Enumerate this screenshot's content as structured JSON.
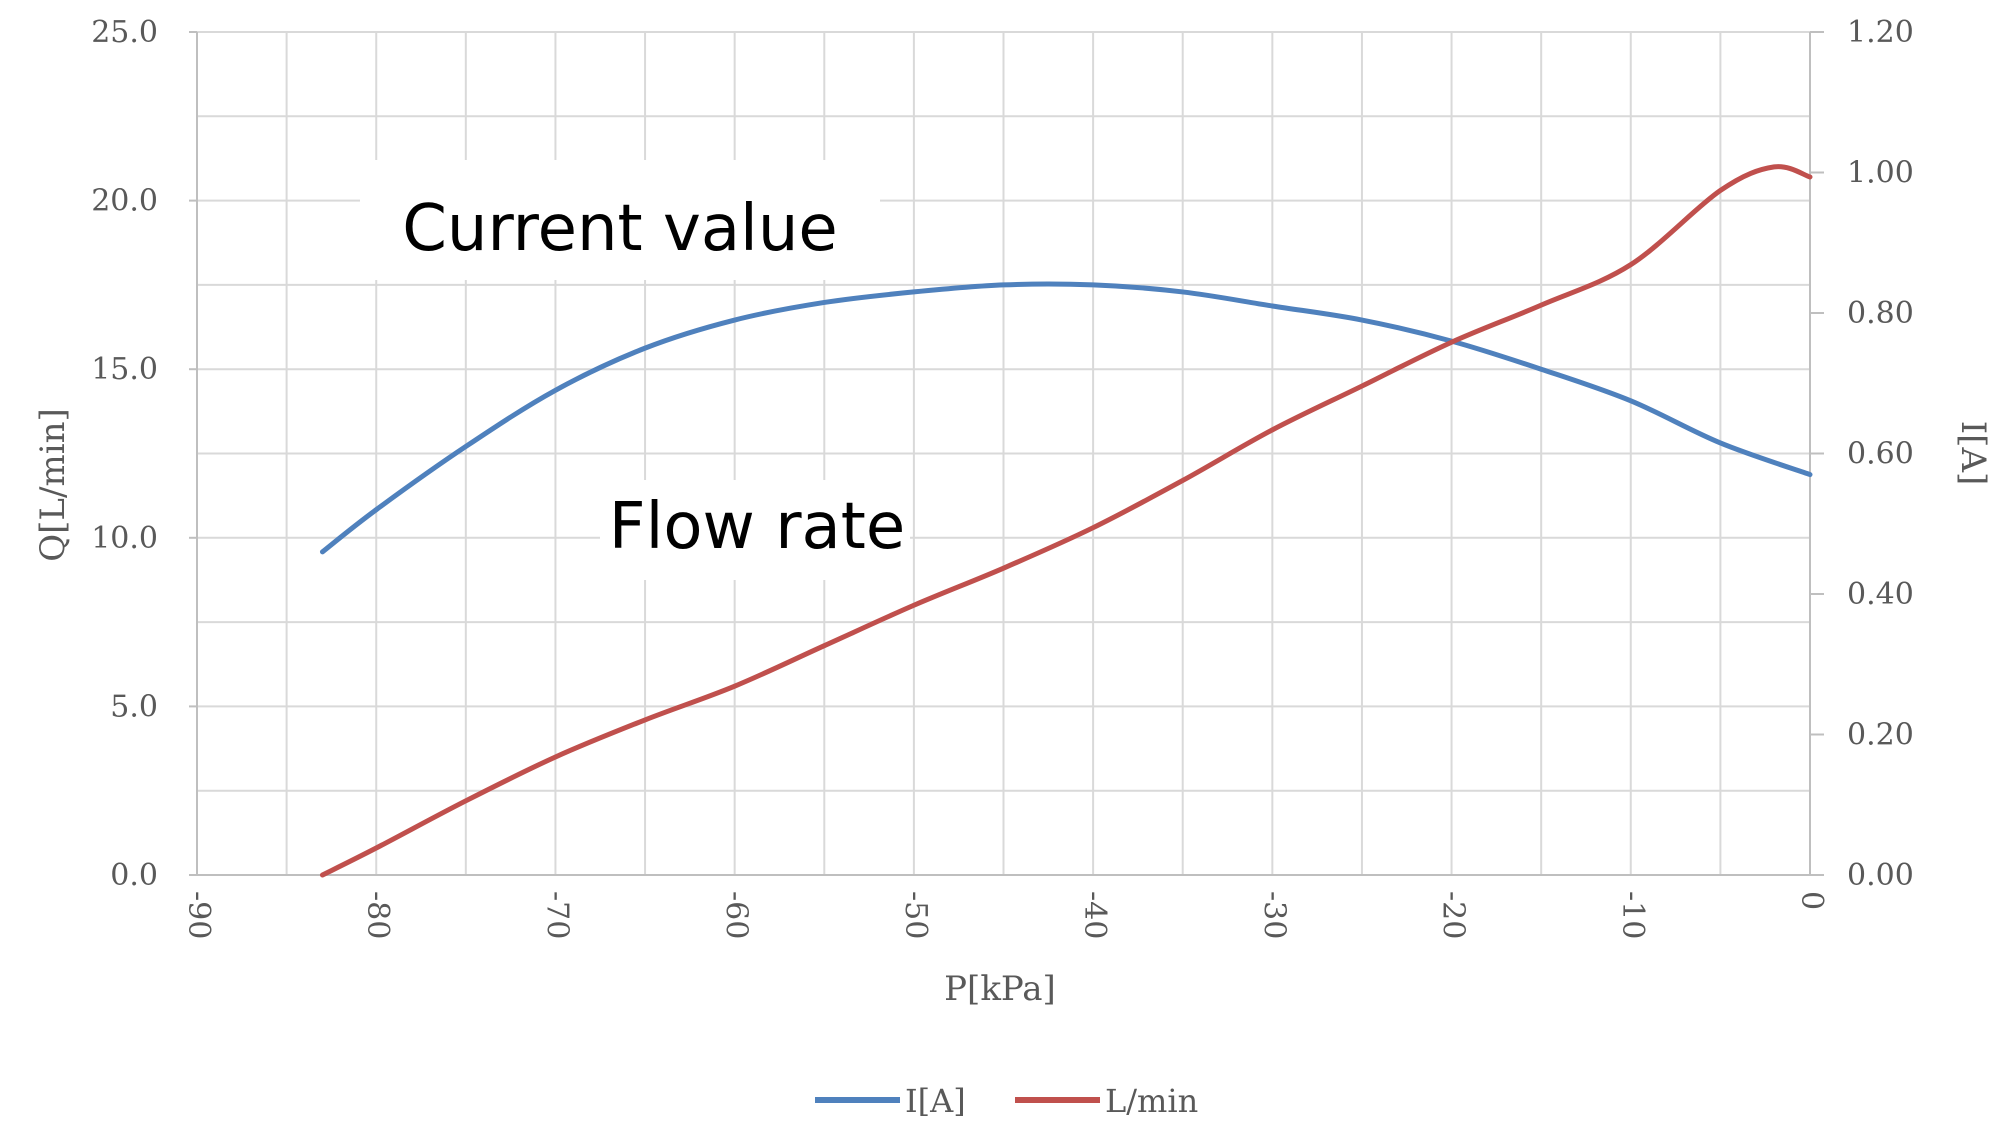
{
  "chart_data": {
    "type": "line",
    "xlabel": "P[kPa]",
    "ylabel_left": "Q[L/min]",
    "ylabel_right": "I[A]",
    "xlim": [
      -90,
      0
    ],
    "ylim_left": [
      0,
      25
    ],
    "ylim_right": [
      0,
      1.2
    ],
    "x_ticks": [
      "-90",
      "-80",
      "-70",
      "-60",
      "-50",
      "-40",
      "-30",
      "-20",
      "-10",
      "0"
    ],
    "y_left_ticks": [
      "0.0",
      "5.0",
      "10.0",
      "15.0",
      "20.0",
      "25.0"
    ],
    "y_right_ticks": [
      "0.00",
      "0.20",
      "0.40",
      "0.60",
      "0.80",
      "1.00",
      "1.20"
    ],
    "grid": true,
    "legend_position": "bottom",
    "annotations": [
      "Current value",
      "Flow rate"
    ],
    "series": [
      {
        "name": "I[A]",
        "color": "#4f81bd",
        "axis": "right",
        "x": [
          -83,
          -80,
          -75,
          -70,
          -65,
          -60,
          -55,
          -50,
          -45,
          -40,
          -35,
          -30,
          -25,
          -20,
          -15,
          -10,
          -5,
          0
        ],
        "y": [
          0.46,
          0.52,
          0.61,
          0.69,
          0.75,
          0.79,
          0.815,
          0.83,
          0.84,
          0.84,
          0.83,
          0.81,
          0.79,
          0.76,
          0.72,
          0.675,
          0.615,
          0.57
        ]
      },
      {
        "name": "L/min",
        "color": "#c0504d",
        "axis": "left",
        "x": [
          -83,
          -80,
          -75,
          -70,
          -65,
          -60,
          -55,
          -50,
          -45,
          -40,
          -35,
          -30,
          -25,
          -20,
          -15,
          -10,
          -5,
          -2,
          0
        ],
        "y": [
          0.0,
          0.8,
          2.2,
          3.5,
          4.6,
          5.6,
          6.8,
          8.0,
          9.1,
          10.3,
          11.7,
          13.2,
          14.5,
          15.8,
          16.9,
          18.1,
          20.3,
          21.0,
          20.7
        ]
      }
    ]
  }
}
